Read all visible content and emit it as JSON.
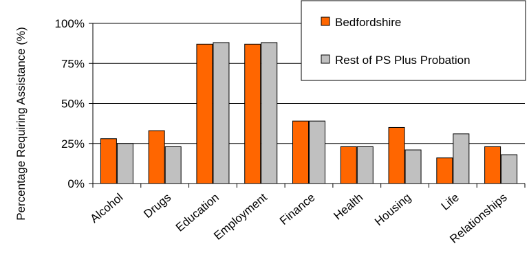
{
  "chart_data": {
    "type": "bar",
    "title": "",
    "xlabel": "",
    "ylabel": "Percentage Requiring Assistance (%)",
    "ylim": [
      0,
      100
    ],
    "yticks": [
      0,
      25,
      50,
      75,
      100
    ],
    "ytick_labels": [
      "0%",
      "25%",
      "50%",
      "75%",
      "100%"
    ],
    "grid": true,
    "legend_position": "top-right",
    "categories": [
      "Alcohol",
      "Drugs",
      "Education",
      "Employment",
      "Finance",
      "Health",
      "Housing",
      "Life",
      "Relationships"
    ],
    "series": [
      {
        "name": "Bedfordshire",
        "color": "#ff6600",
        "values": [
          28,
          33,
          87,
          87,
          39,
          23,
          35,
          16,
          23
        ]
      },
      {
        "name": "Rest of PS Plus Probation",
        "color": "#c0c0c0",
        "values": [
          25,
          23,
          88,
          88,
          39,
          23,
          21,
          31,
          18
        ]
      }
    ]
  }
}
